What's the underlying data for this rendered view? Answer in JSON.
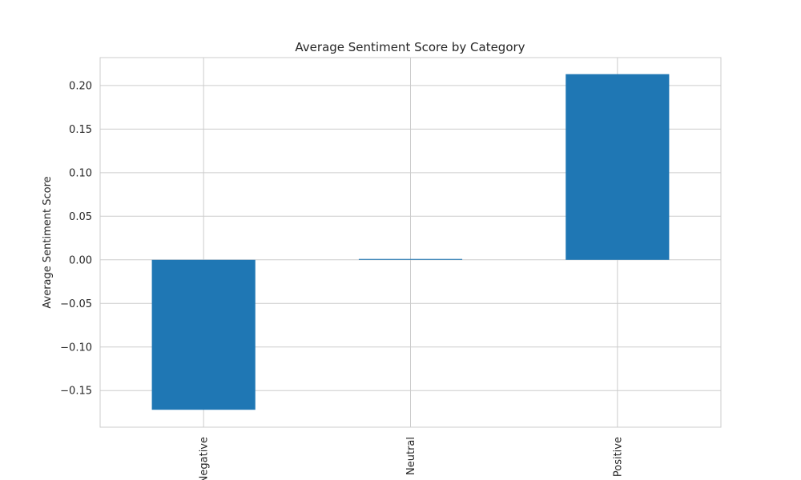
{
  "chart_data": {
    "type": "bar",
    "title": "Average Sentiment Score by Category",
    "xlabel": "",
    "ylabel": "Average Sentiment Score",
    "categories": [
      "Negative",
      "Neutral",
      "Positive"
    ],
    "values": [
      -0.172,
      0.001,
      0.213
    ],
    "ylim": [
      -0.192,
      0.232
    ],
    "yticks": [
      -0.15,
      -0.1,
      -0.05,
      0.0,
      0.05,
      0.1,
      0.15,
      0.2
    ],
    "ytick_labels": [
      "−0.15",
      "−0.10",
      "−0.05",
      "0.00",
      "0.05",
      "0.10",
      "0.15",
      "0.20"
    ],
    "xtick_rotation": "vertical",
    "grid": true,
    "legend": "none",
    "bar_color": "#1f77b4",
    "grid_color": "#cccccc"
  }
}
